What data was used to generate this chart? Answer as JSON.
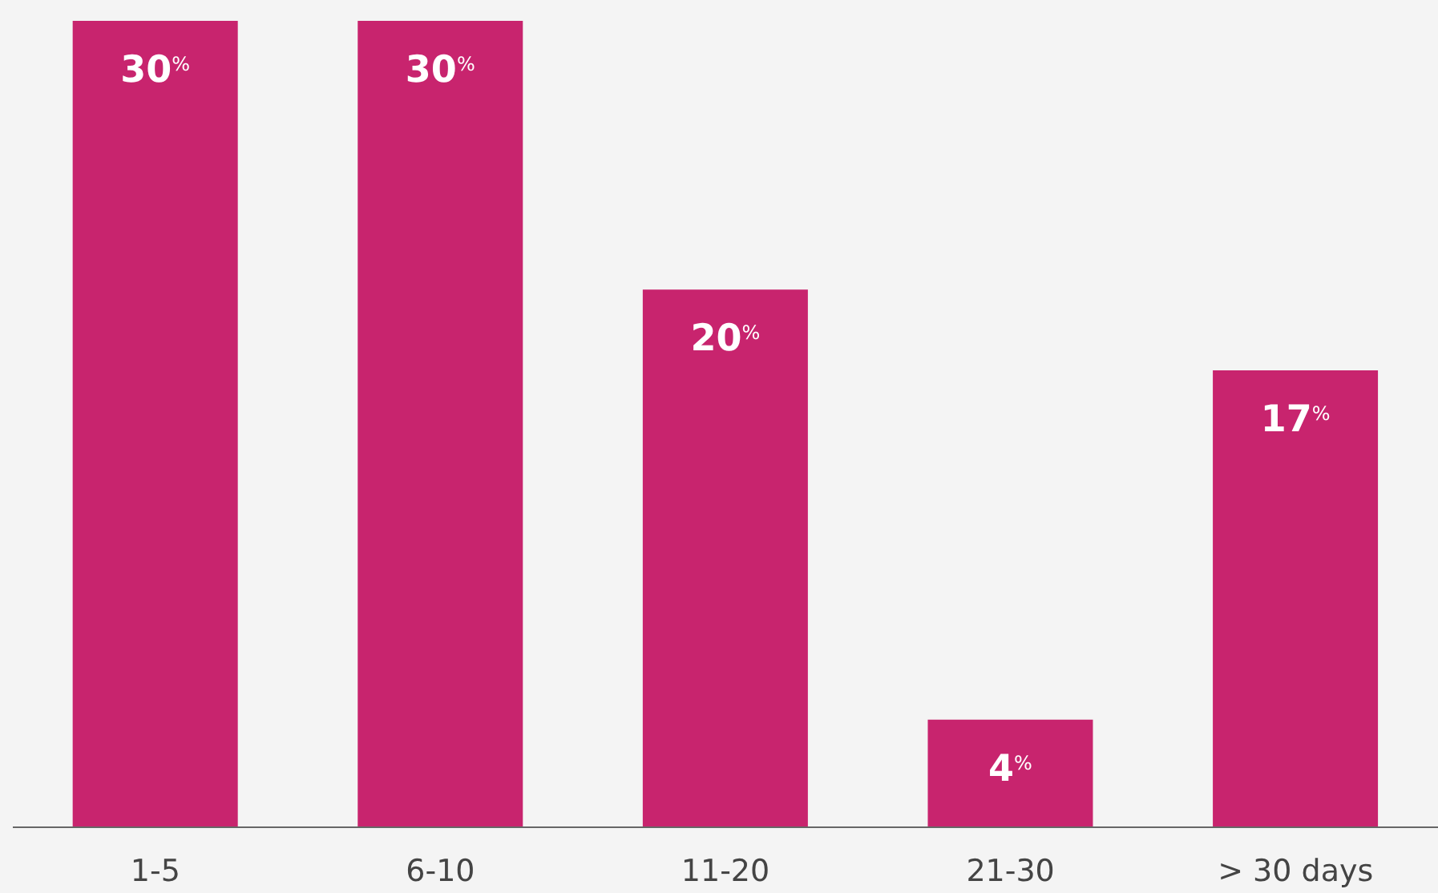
{
  "chart_data": {
    "type": "bar",
    "categories": [
      "1-5",
      "6-10",
      "11-20",
      "21-30",
      "> 30 days"
    ],
    "values": [
      30,
      30,
      20,
      4,
      17
    ],
    "color": "#c8246e",
    "value_labels": [
      "30$^{%}$",
      "30$^{%}$",
      "20$^{%}$",
      "4$^{%}$",
      "17$^{%}$"
    ],
    "grid": false,
    "legend": false
  }
}
